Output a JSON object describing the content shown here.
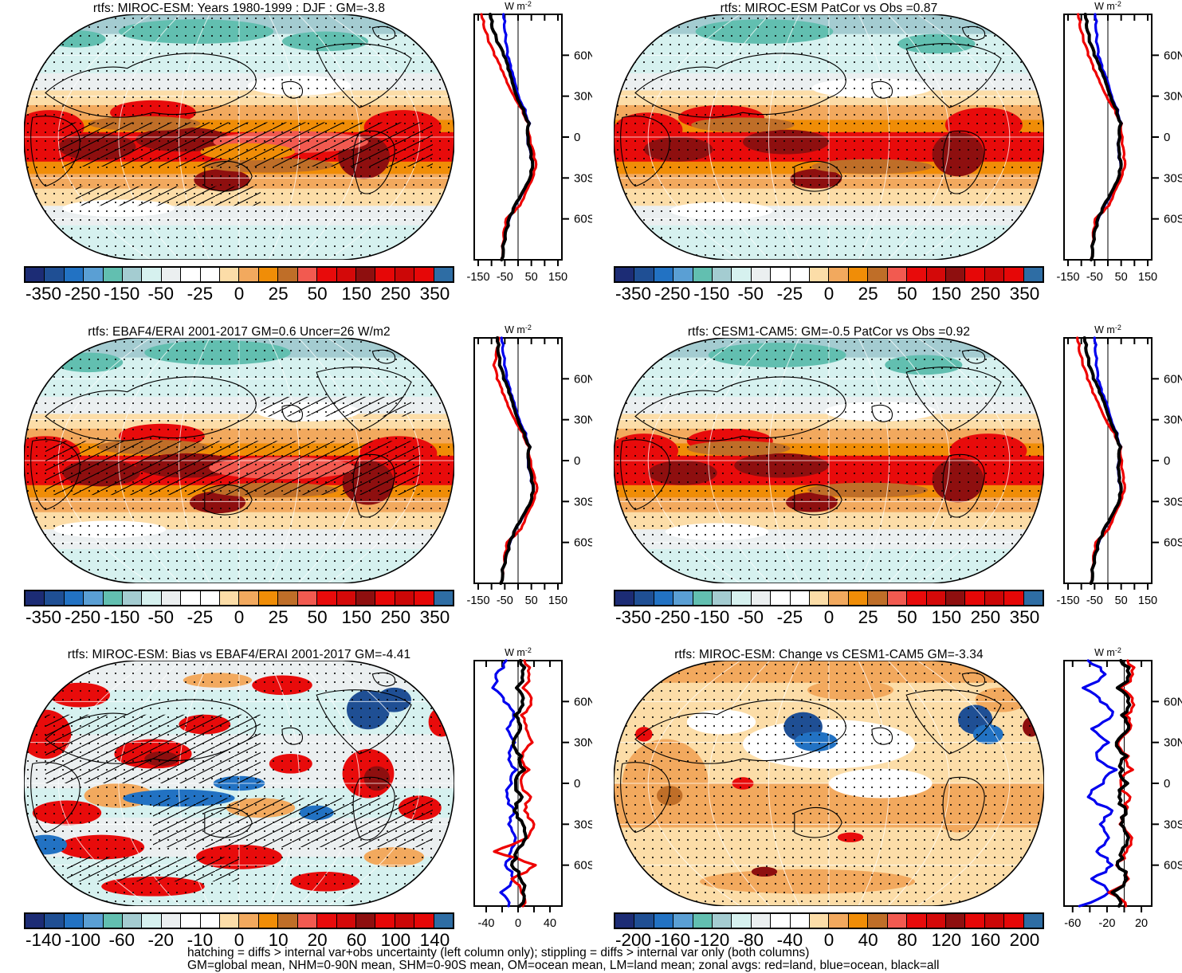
{
  "palette": [
    "#1c2c75",
    "#1f4f94",
    "#2272c3",
    "#5a9fd4",
    "#62bfb0",
    "#a4ccd1",
    "#d6f1ef",
    "#ebeff0",
    "#ffffff",
    "#ffffff",
    "#fcdda8",
    "#f2a95e",
    "#f08d07",
    "#bf6e28",
    "#f25a50",
    "#e80b0b",
    "#d40909",
    "#8e0f0f",
    "#e60707",
    "#cc0707",
    "#e60707",
    "#2e6da4"
  ],
  "caption": {
    "line1": "hatching = diffs > internal var+obs uncertainty (left column only); stippling = diffs > internal var only (both columns)",
    "line2": "GM=global mean, NHM=0-90N mean, SHM=0-90S mean, OM=ocean mean, LM=land mean; zonal avgs: red=land, blue=ocean, black=all"
  },
  "chart_data": [
    {
      "type": "heatmap",
      "subtype": "global-map-with-zonal-mean",
      "position": "top-left",
      "title": "rtfs: MIROC-ESM: Years 1980-1999 : DJF : GM=-3.8",
      "projection": "Robinson",
      "map_theme": "netflux",
      "hatching": true,
      "stippling": true,
      "colorbar": {
        "tick_labels": [
          "-350",
          "-250",
          "-150",
          "-50",
          "-25",
          "0",
          "25",
          "50",
          "150",
          "250",
          "350"
        ]
      },
      "zonal_plot": {
        "units": "W m-2",
        "x_range": [
          -165,
          165
        ],
        "x_ticks": [
          -150,
          -100,
          -50,
          0,
          50,
          100,
          150
        ],
        "x_labeled_ticks": [
          [
            -150,
            "-150"
          ],
          [
            -50,
            "-50"
          ],
          [
            50,
            "50"
          ],
          [
            150,
            "150"
          ]
        ],
        "lat_ticks": [
          [
            60,
            "60N"
          ],
          [
            30,
            "30N"
          ],
          [
            0,
            "0"
          ],
          [
            -30,
            "30S"
          ],
          [
            -60,
            "60S"
          ]
        ],
        "lats": [
          90,
          80,
          70,
          60,
          50,
          40,
          30,
          20,
          10,
          0,
          -10,
          -20,
          -30,
          -40,
          -50,
          -60,
          -70,
          -80,
          -90
        ],
        "wiggle": 5,
        "series": [
          {
            "name": "ocean",
            "color": "#0000ee",
            "values": [
              -55,
              -52,
              -48,
              -42,
              -28,
              -12,
              2,
              28,
              44,
              36,
              46,
              54,
              47,
              20,
              -10,
              -33,
              -48,
              -58,
              -62
            ]
          },
          {
            "name": "land",
            "color": "#ee0000",
            "values": [
              -138,
              -128,
              -112,
              -90,
              -65,
              -42,
              -15,
              18,
              40,
              45,
              58,
              68,
              55,
              30,
              8,
              -45,
              -55,
              -60,
              -63
            ]
          },
          {
            "name": "all",
            "color": "#000000",
            "values": [
              -105,
              -98,
              -80,
              -55,
              -38,
              -22,
              -5,
              22,
              42,
              38,
              48,
              55,
              45,
              18,
              -12,
              -35,
              -48,
              -58,
              -62
            ]
          }
        ]
      }
    },
    {
      "type": "heatmap",
      "subtype": "global-map-with-zonal-mean",
      "position": "top-right",
      "title": "rtfs: MIROC-ESM PatCor vs Obs =0.87",
      "projection": "Robinson",
      "map_theme": "netflux",
      "hatching": false,
      "stippling": true,
      "colorbar": {
        "tick_labels": [
          "-350",
          "-250",
          "-150",
          "-50",
          "-25",
          "0",
          "25",
          "50",
          "150",
          "250",
          "350"
        ]
      },
      "zonal_plot": {
        "units": "W m-2",
        "x_range": [
          -165,
          165
        ],
        "x_ticks": [
          -150,
          -100,
          -50,
          0,
          50,
          100,
          150
        ],
        "x_labeled_ticks": [
          [
            -150,
            "-150"
          ],
          [
            -50,
            "-50"
          ],
          [
            50,
            "50"
          ],
          [
            150,
            "150"
          ]
        ],
        "lat_ticks": [
          [
            60,
            "60N"
          ],
          [
            30,
            "30N"
          ],
          [
            0,
            "0"
          ],
          [
            -30,
            "30S"
          ],
          [
            -60,
            "60S"
          ]
        ],
        "lats": [
          90,
          80,
          70,
          60,
          50,
          40,
          30,
          20,
          10,
          0,
          -10,
          -20,
          -30,
          -40,
          -50,
          -60,
          -70,
          -80,
          -90
        ],
        "wiggle": 5,
        "series": [
          {
            "name": "ocean",
            "color": "#0000ee",
            "values": [
              -48,
              -46,
              -44,
              -38,
              -22,
              0,
              15,
              38,
              52,
              44,
              40,
              48,
              42,
              18,
              -12,
              -36,
              -52,
              -60,
              -63
            ]
          },
          {
            "name": "land",
            "color": "#ee0000",
            "values": [
              -112,
              -105,
              -92,
              -75,
              -55,
              -30,
              -5,
              28,
              52,
              55,
              60,
              65,
              50,
              25,
              5,
              -48,
              -56,
              -61,
              -64
            ]
          },
          {
            "name": "all",
            "color": "#000000",
            "values": [
              -85,
              -80,
              -70,
              -52,
              -30,
              -8,
              10,
              35,
              50,
              45,
              42,
              50,
              40,
              15,
              -15,
              -38,
              -52,
              -60,
              -63
            ]
          }
        ]
      }
    },
    {
      "type": "heatmap",
      "subtype": "global-map-with-zonal-mean",
      "position": "middle-left",
      "title": "rtfs: EBAF4/ERAI 2001-2017 GM=0.6 Uncer=26 W/m2",
      "projection": "Robinson",
      "map_theme": "netflux",
      "hatching": true,
      "stippling": true,
      "colorbar": {
        "tick_labels": [
          "-350",
          "-250",
          "-150",
          "-50",
          "-25",
          "0",
          "25",
          "50",
          "150",
          "250",
          "350"
        ]
      },
      "zonal_plot": {
        "units": "W m-2",
        "x_range": [
          -165,
          165
        ],
        "x_ticks": [
          -150,
          -100,
          -50,
          0,
          50,
          100,
          150
        ],
        "x_labeled_ticks": [
          [
            -150,
            "-150"
          ],
          [
            -50,
            "-50"
          ],
          [
            50,
            "50"
          ],
          [
            150,
            "150"
          ]
        ],
        "lat_ticks": [
          [
            60,
            "60N"
          ],
          [
            30,
            "30N"
          ],
          [
            0,
            "0"
          ],
          [
            -30,
            "30S"
          ],
          [
            -60,
            "60S"
          ]
        ],
        "lats": [
          90,
          80,
          70,
          60,
          50,
          40,
          30,
          20,
          10,
          0,
          -10,
          -20,
          -30,
          -40,
          -50,
          -60,
          -70,
          -80,
          -90
        ],
        "wiggle": 5,
        "series": [
          {
            "name": "ocean",
            "color": "#0000ee",
            "values": [
              -62,
              -58,
              -52,
              -45,
              -30,
              -12,
              5,
              30,
              46,
              38,
              48,
              56,
              50,
              22,
              -8,
              -30,
              -46,
              -60,
              -65
            ]
          },
          {
            "name": "land",
            "color": "#ee0000",
            "values": [
              -72,
              -82,
              -92,
              -80,
              -60,
              -38,
              -12,
              20,
              42,
              48,
              60,
              72,
              58,
              32,
              12,
              -42,
              -52,
              -58,
              -66
            ]
          },
          {
            "name": "all",
            "color": "#000000",
            "values": [
              -78,
              -76,
              -70,
              -55,
              -35,
              -18,
              0,
              25,
              45,
              40,
              50,
              58,
              48,
              20,
              -10,
              -32,
              -46,
              -60,
              -65
            ]
          }
        ]
      }
    },
    {
      "type": "heatmap",
      "subtype": "global-map-with-zonal-mean",
      "position": "middle-right",
      "title": "rtfs: CESM1-CAM5: GM=-0.5 PatCor vs Obs =0.92",
      "projection": "Robinson",
      "map_theme": "netflux",
      "hatching": false,
      "stippling": true,
      "colorbar": {
        "tick_labels": [
          "-350",
          "-250",
          "-150",
          "-50",
          "-25",
          "0",
          "25",
          "50",
          "150",
          "250",
          "350"
        ]
      },
      "zonal_plot": {
        "units": "W m-2",
        "x_range": [
          -165,
          165
        ],
        "x_ticks": [
          -150,
          -100,
          -50,
          0,
          50,
          100,
          150
        ],
        "x_labeled_ticks": [
          [
            -150,
            "-150"
          ],
          [
            -50,
            "-50"
          ],
          [
            50,
            "50"
          ],
          [
            150,
            "150"
          ]
        ],
        "lat_ticks": [
          [
            60,
            "60N"
          ],
          [
            30,
            "30N"
          ],
          [
            0,
            "0"
          ],
          [
            -30,
            "30S"
          ],
          [
            -60,
            "60S"
          ]
        ],
        "lats": [
          90,
          80,
          70,
          60,
          50,
          40,
          30,
          20,
          10,
          0,
          -10,
          -20,
          -30,
          -40,
          -50,
          -60,
          -70,
          -80,
          -90
        ],
        "wiggle": 5,
        "series": [
          {
            "name": "ocean",
            "color": "#0000ee",
            "values": [
              -50,
              -48,
              -45,
              -40,
              -24,
              -2,
              13,
              36,
              50,
              42,
              40,
              48,
              44,
              18,
              -12,
              -34,
              -50,
              -60,
              -64
            ]
          },
          {
            "name": "land",
            "color": "#ee0000",
            "values": [
              -115,
              -108,
              -95,
              -78,
              -58,
              -32,
              -8,
              26,
              50,
              53,
              58,
              64,
              48,
              24,
              4,
              -46,
              -55,
              -61,
              -65
            ]
          },
          {
            "name": "all",
            "color": "#000000",
            "values": [
              -88,
              -82,
              -72,
              -55,
              -32,
              -10,
              8,
              33,
              48,
              44,
              42,
              50,
              42,
              16,
              -14,
              -36,
              -50,
              -60,
              -64
            ]
          }
        ]
      }
    },
    {
      "type": "heatmap",
      "subtype": "global-map-with-zonal-mean",
      "position": "bottom-left",
      "title": "rtfs: MIROC-ESM: Bias vs EBAF4/ERAI 2001-2017 GM=-4.41",
      "projection": "Robinson",
      "map_theme": "bias",
      "hatching": true,
      "stippling": true,
      "colorbar": {
        "tick_labels": [
          "-140",
          "-100",
          "-60",
          "-20",
          "-10",
          "0",
          "10",
          "20",
          "60",
          "100",
          "140"
        ]
      },
      "zonal_plot": {
        "units": "W m-2",
        "x_range": [
          -55,
          55
        ],
        "x_ticks": [
          -40,
          -20,
          0,
          20,
          40
        ],
        "x_labeled_ticks": [
          [
            -40,
            "-40"
          ],
          [
            0,
            "0"
          ],
          [
            40,
            "40"
          ]
        ],
        "lat_ticks": [
          [
            60,
            "60N"
          ],
          [
            30,
            "30N"
          ],
          [
            0,
            "0"
          ],
          [
            -30,
            "30S"
          ],
          [
            -60,
            "60S"
          ]
        ],
        "lats": [
          90,
          80,
          70,
          60,
          50,
          40,
          30,
          20,
          10,
          0,
          -10,
          -20,
          -30,
          -40,
          -50,
          -60,
          -70,
          -80,
          -90
        ],
        "wiggle": 4,
        "series": [
          {
            "name": "ocean",
            "color": "#0000ee",
            "values": [
              -15,
              -28,
              -32,
              -18,
              -6,
              -14,
              -4,
              -10,
              -2,
              -8,
              -14,
              -5,
              -12,
              -3,
              -9,
              -16,
              -6,
              -22,
              -12
            ]
          },
          {
            "name": "land",
            "color": "#ee0000",
            "values": [
              8,
              14,
              6,
              16,
              4,
              10,
              18,
              6,
              14,
              4,
              16,
              8,
              20,
              12,
              -30,
              22,
              -8,
              4,
              6
            ]
          },
          {
            "name": "all",
            "color": "#000000",
            "values": [
              3,
              6,
              -2,
              5,
              -4,
              3,
              -6,
              4,
              8,
              -3,
              5,
              -5,
              6,
              10,
              -2,
              -8,
              3,
              6,
              2
            ]
          }
        ]
      }
    },
    {
      "type": "heatmap",
      "subtype": "global-map-with-zonal-mean",
      "position": "bottom-right",
      "title": "rtfs: MIROC-ESM: Change vs CESM1-CAM5 GM=-3.34",
      "projection": "Robinson",
      "map_theme": "change",
      "hatching": false,
      "stippling": true,
      "colorbar": {
        "tick_labels": [
          "-200",
          "-160",
          "-120",
          "-80",
          "-40",
          "0",
          "40",
          "80",
          "120",
          "160",
          "200"
        ]
      },
      "zonal_plot": {
        "units": "W m-2",
        "x_range": [
          -70,
          32
        ],
        "x_ticks": [
          -60,
          -40,
          -20,
          0,
          20
        ],
        "x_labeled_ticks": [
          [
            -60,
            "-60"
          ],
          [
            -20,
            "-20"
          ],
          [
            20,
            "20"
          ]
        ],
        "lat_ticks": [
          [
            60,
            "60N"
          ],
          [
            30,
            "30N"
          ],
          [
            0,
            "0"
          ],
          [
            -30,
            "30S"
          ],
          [
            -60,
            "60S"
          ]
        ],
        "lats": [
          90,
          80,
          70,
          60,
          50,
          40,
          30,
          20,
          10,
          0,
          -10,
          -20,
          -30,
          -40,
          -50,
          -60,
          -70,
          -80,
          -90
        ],
        "wiggle": 5,
        "series": [
          {
            "name": "ocean",
            "color": "#0000ee",
            "values": [
              -42,
              -22,
              -48,
              -28,
              -14,
              -38,
              -18,
              -32,
              -9,
              -24,
              -42,
              -14,
              -28,
              -18,
              -32,
              -14,
              -38,
              -18,
              -52
            ]
          },
          {
            "name": "land",
            "color": "#ee0000",
            "values": [
              4,
              10,
              -5,
              9,
              2,
              7,
              -7,
              5,
              10,
              -4,
              7,
              2,
              -5,
              9,
              3,
              -9,
              5,
              -18,
              2
            ]
          },
          {
            "name": "all",
            "color": "#000000",
            "values": [
              -4,
              6,
              -8,
              4,
              -3,
              5,
              -9,
              3,
              -2,
              4,
              -6,
              2,
              -4,
              5,
              -3,
              -8,
              3,
              -14,
              -6
            ]
          }
        ]
      }
    }
  ]
}
